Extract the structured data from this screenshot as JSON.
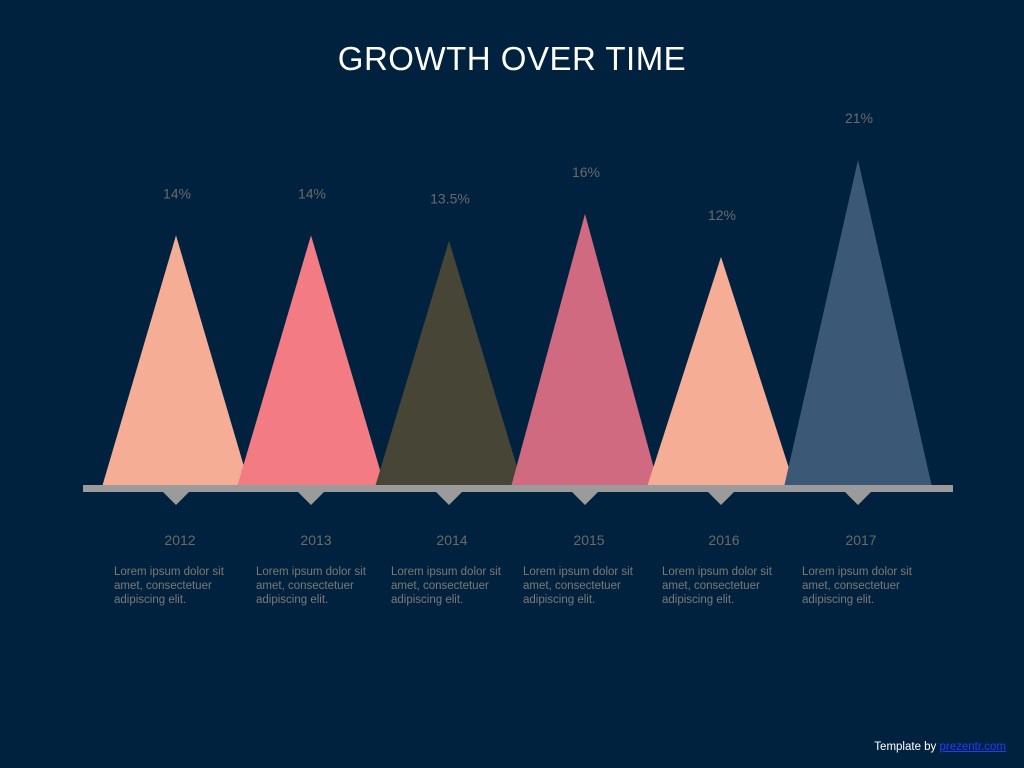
{
  "slide": {
    "title": "GROWTH OVER TIME",
    "credit_prefix": "Template by",
    "credit_link": "prezentr.com"
  },
  "chart_data": {
    "type": "bar",
    "title": "GROWTH OVER TIME",
    "categories": [
      "2012",
      "2013",
      "2014",
      "2015",
      "2016",
      "2017"
    ],
    "values": [
      14,
      14,
      13.5,
      16,
      12,
      21
    ],
    "value_labels": [
      "14%",
      "14%",
      "13.5%",
      "16%",
      "12%",
      "21%"
    ],
    "descriptions": [
      "Lorem ipsum dolor sit amet,  consectetuer adipiscing elit.",
      "Lorem ipsum dolor sit amet,  consectetuer adipiscing elit.",
      "Lorem ipsum dolor sit amet,  consectetuer adipiscing elit.",
      "Lorem ipsum dolor sit amet,  consectetuer adipiscing elit.",
      "Lorem ipsum dolor sit amet,  consectetuer adipiscing elit.",
      "Lorem ipsum dolor sit amet,  consectetuer adipiscing elit."
    ],
    "colors": [
      "#f5ae95",
      "#f27b84",
      "#474536",
      "#d06a80",
      "#f5ae95",
      "#3b5877"
    ],
    "ylim": [
      0,
      21
    ],
    "grid": false,
    "legend": "none"
  }
}
